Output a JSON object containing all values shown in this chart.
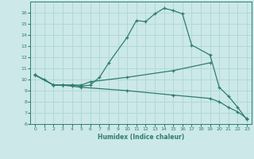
{
  "xlabel": "Humidex (Indice chaleur)",
  "bg_color": "#cce8e8",
  "line_color": "#2e7d6e",
  "grid_color": "#b0d8d8",
  "xlim": [
    -0.5,
    23.5
  ],
  "ylim": [
    6,
    17
  ],
  "xticks": [
    0,
    1,
    2,
    3,
    4,
    5,
    6,
    7,
    8,
    9,
    10,
    11,
    12,
    13,
    14,
    15,
    16,
    17,
    18,
    19,
    20,
    21,
    22,
    23
  ],
  "yticks": [
    6,
    7,
    8,
    9,
    10,
    11,
    12,
    13,
    14,
    15,
    16
  ],
  "line1_x": [
    0,
    1,
    2,
    3,
    4,
    5,
    6,
    7,
    8,
    10,
    11,
    12,
    13,
    14,
    15,
    16,
    17,
    19,
    20,
    21,
    22,
    23
  ],
  "line1_y": [
    10.4,
    10.0,
    9.5,
    9.5,
    9.5,
    9.4,
    9.5,
    10.2,
    11.5,
    13.8,
    15.3,
    15.2,
    15.9,
    16.4,
    16.2,
    15.9,
    13.1,
    12.2,
    9.3,
    8.5,
    7.5,
    6.4
  ],
  "line2_x": [
    0,
    2,
    3,
    4,
    5,
    6,
    10,
    15,
    19
  ],
  "line2_y": [
    10.4,
    9.5,
    9.5,
    9.5,
    9.5,
    9.8,
    10.2,
    10.8,
    11.5
  ],
  "line3_x": [
    0,
    2,
    3,
    4,
    5,
    10,
    15,
    19,
    20,
    21,
    22,
    23
  ],
  "line3_y": [
    10.4,
    9.5,
    9.5,
    9.4,
    9.3,
    9.0,
    8.6,
    8.3,
    8.0,
    7.5,
    7.1,
    6.5
  ]
}
